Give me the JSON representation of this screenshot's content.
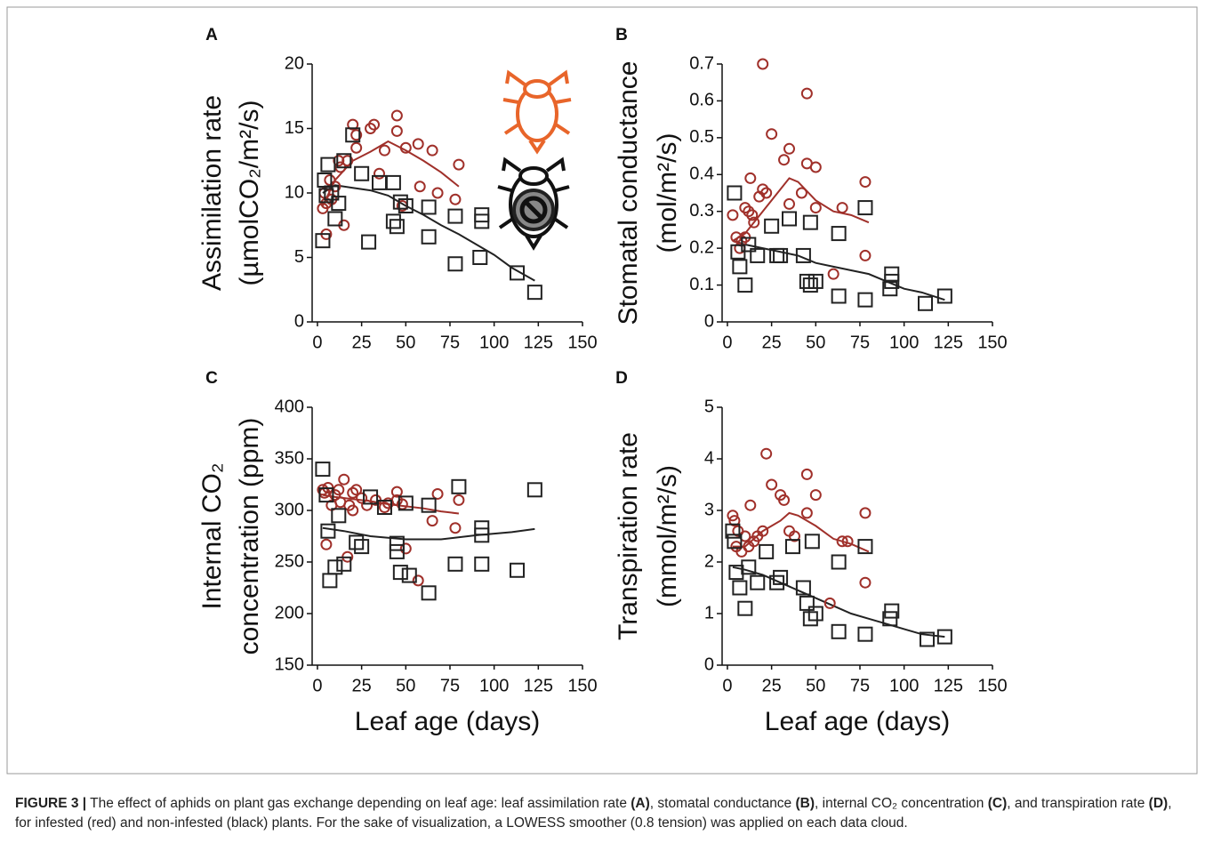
{
  "chart_data": [
    {
      "type": "scatter",
      "panel": "A",
      "ylabel": [
        "Assimilation rate",
        "(µmolCO₂/m²/s)"
      ],
      "xlim": [
        -3,
        150
      ],
      "xticks": [
        0,
        25,
        50,
        75,
        100,
        125,
        150
      ],
      "ylim": [
        0,
        20
      ],
      "yticks": [
        0,
        5,
        10,
        15,
        20
      ],
      "series": [
        {
          "color": "#a0302a",
          "marker": "circle",
          "x": [
            3,
            4,
            5,
            7,
            8,
            10,
            12,
            13,
            15,
            17,
            20,
            22,
            22,
            30,
            32,
            35,
            38,
            45,
            45,
            48,
            50,
            57,
            65,
            68,
            78,
            80,
            58,
            5
          ],
          "values": [
            8.8,
            10,
            9.2,
            11,
            9.5,
            10.5,
            12.5,
            12,
            7.5,
            12.5,
            15.3,
            13.5,
            14.5,
            15,
            15.3,
            11.5,
            13.3,
            16,
            14.8,
            9,
            13.5,
            13.8,
            13.3,
            10,
            9.5,
            12.2,
            10.5,
            6.8
          ]
        },
        {
          "color": "#222222",
          "marker": "square",
          "x": [
            3,
            4,
            6,
            8,
            10,
            12,
            15,
            20,
            25,
            29,
            35,
            43,
            43,
            45,
            47,
            50,
            63,
            63,
            78,
            78,
            92,
            93,
            93,
            113,
            123,
            5
          ],
          "values": [
            6.3,
            11,
            12.2,
            10,
            8,
            9.2,
            12.5,
            14.5,
            11.5,
            6.2,
            10.8,
            10.8,
            7.8,
            7.4,
            9.3,
            9,
            8.9,
            6.6,
            4.5,
            8.2,
            5,
            8.3,
            7.8,
            3.8,
            2.3,
            9.8
          ]
        }
      ],
      "smoothers": [
        {
          "color": "#a0302a",
          "x": [
            3,
            10,
            20,
            30,
            40,
            50,
            60,
            70,
            80
          ],
          "values": [
            9,
            11,
            12.5,
            13.2,
            14,
            13.3,
            12.5,
            11.6,
            10.5
          ]
        },
        {
          "color": "#222222",
          "x": [
            3,
            10,
            20,
            30,
            40,
            50,
            60,
            70,
            80,
            90,
            100,
            110,
            123
          ],
          "values": [
            10,
            10.6,
            10.4,
            10.2,
            9.8,
            9,
            8.3,
            7.5,
            6.8,
            6,
            5.2,
            4.2,
            3.2
          ]
        }
      ]
    },
    {
      "type": "scatter",
      "panel": "B",
      "ylabel": [
        "Stomatal conductance",
        "(mol/m²/s)"
      ],
      "xlim": [
        -3,
        150
      ],
      "xticks": [
        0,
        25,
        50,
        75,
        100,
        125,
        150
      ],
      "ylim": [
        0,
        0.7
      ],
      "yticks": [
        0,
        0.1,
        0.2,
        0.3,
        0.4,
        0.5,
        0.6,
        0.7
      ],
      "series": [
        {
          "color": "#a0302a",
          "marker": "circle",
          "x": [
            3,
            5,
            7,
            8,
            10,
            10,
            12,
            13,
            14,
            15,
            18,
            20,
            20,
            22,
            25,
            32,
            35,
            35,
            42,
            45,
            45,
            50,
            60,
            65,
            78,
            78,
            50
          ],
          "values": [
            0.29,
            0.23,
            0.2,
            0.22,
            0.31,
            0.23,
            0.3,
            0.39,
            0.29,
            0.27,
            0.34,
            0.36,
            0.7,
            0.35,
            0.51,
            0.44,
            0.47,
            0.32,
            0.35,
            0.62,
            0.43,
            0.42,
            0.13,
            0.31,
            0.38,
            0.18,
            0.31
          ]
        },
        {
          "color": "#222222",
          "marker": "square",
          "x": [
            4,
            6,
            7,
            10,
            12,
            17,
            25,
            28,
            35,
            43,
            45,
            47,
            47,
            50,
            63,
            63,
            78,
            78,
            92,
            93,
            93,
            112,
            123,
            30
          ],
          "values": [
            0.35,
            0.19,
            0.15,
            0.1,
            0.21,
            0.18,
            0.26,
            0.18,
            0.28,
            0.18,
            0.11,
            0.1,
            0.27,
            0.11,
            0.24,
            0.07,
            0.06,
            0.31,
            0.09,
            0.13,
            0.11,
            0.05,
            0.07,
            0.18
          ]
        }
      ],
      "smoothers": [
        {
          "color": "#a0302a",
          "x": [
            3,
            10,
            20,
            30,
            35,
            40,
            50,
            60,
            70,
            80
          ],
          "values": [
            0.22,
            0.24,
            0.3,
            0.36,
            0.39,
            0.38,
            0.33,
            0.3,
            0.29,
            0.27
          ]
        },
        {
          "color": "#222222",
          "x": [
            3,
            10,
            20,
            30,
            40,
            50,
            60,
            70,
            80,
            90,
            100,
            110,
            123
          ],
          "values": [
            0.22,
            0.21,
            0.2,
            0.19,
            0.18,
            0.16,
            0.15,
            0.14,
            0.13,
            0.11,
            0.09,
            0.08,
            0.06
          ]
        }
      ]
    },
    {
      "type": "scatter",
      "panel": "C",
      "ylabel": [
        "Internal CO₂",
        "concentration (ppm)"
      ],
      "xlabel": "Leaf age (days)",
      "xlim": [
        -3,
        150
      ],
      "xticks": [
        0,
        25,
        50,
        75,
        100,
        125,
        150
      ],
      "ylim": [
        150,
        400
      ],
      "yticks": [
        150,
        200,
        250,
        300,
        350,
        400
      ],
      "series": [
        {
          "color": "#a0302a",
          "marker": "circle",
          "x": [
            3,
            4,
            5,
            6,
            8,
            10,
            12,
            13,
            15,
            17,
            18,
            20,
            22,
            25,
            28,
            33,
            38,
            40,
            45,
            45,
            48,
            50,
            57,
            65,
            68,
            78,
            80,
            20
          ],
          "values": [
            320,
            317,
            267,
            322,
            305,
            315,
            320,
            308,
            330,
            255,
            305,
            317,
            320,
            312,
            305,
            310,
            303,
            307,
            318,
            310,
            306,
            263,
            232,
            290,
            316,
            283,
            310,
            300
          ]
        },
        {
          "color": "#222222",
          "marker": "square",
          "x": [
            3,
            5,
            6,
            7,
            10,
            12,
            15,
            22,
            25,
            30,
            38,
            45,
            45,
            47,
            50,
            52,
            63,
            63,
            78,
            80,
            93,
            93,
            93,
            113,
            123
          ],
          "values": [
            340,
            315,
            280,
            232,
            245,
            295,
            248,
            269,
            265,
            313,
            303,
            268,
            260,
            240,
            307,
            237,
            220,
            305,
            248,
            323,
            283,
            276,
            248,
            242,
            320
          ]
        }
      ],
      "smoothers": [
        {
          "color": "#a0302a",
          "x": [
            3,
            10,
            20,
            30,
            40,
            50,
            60,
            70,
            80
          ],
          "values": [
            315,
            313,
            311,
            309,
            306,
            304,
            302,
            299,
            297
          ]
        },
        {
          "color": "#222222",
          "x": [
            3,
            15,
            30,
            50,
            70,
            90,
            110,
            123
          ],
          "values": [
            283,
            280,
            275,
            272,
            272,
            276,
            279,
            282
          ]
        }
      ]
    },
    {
      "type": "scatter",
      "panel": "D",
      "ylabel": [
        "Transpiration rate",
        "(mmol/m²/s)"
      ],
      "xlabel": "Leaf age (days)",
      "xlim": [
        -3,
        150
      ],
      "xticks": [
        0,
        25,
        50,
        75,
        100,
        125,
        150
      ],
      "ylim": [
        0,
        5
      ],
      "yticks": [
        0,
        1,
        2,
        3,
        4,
        5
      ],
      "series": [
        {
          "color": "#a0302a",
          "marker": "circle",
          "x": [
            3,
            4,
            5,
            6,
            8,
            10,
            12,
            13,
            15,
            17,
            20,
            22,
            25,
            30,
            32,
            35,
            38,
            45,
            45,
            50,
            58,
            65,
            68,
            78,
            78
          ],
          "values": [
            2.9,
            2.8,
            2.3,
            2.6,
            2.2,
            2.5,
            2.3,
            3.1,
            2.4,
            2.5,
            2.6,
            4.1,
            3.5,
            3.3,
            3.2,
            2.6,
            2.5,
            3.7,
            2.95,
            3.3,
            1.2,
            2.4,
            2.4,
            2.95,
            1.6
          ]
        },
        {
          "color": "#222222",
          "marker": "square",
          "x": [
            3,
            4,
            5,
            7,
            10,
            12,
            17,
            22,
            28,
            30,
            37,
            43,
            45,
            47,
            48,
            50,
            63,
            63,
            78,
            78,
            92,
            93,
            113,
            123
          ],
          "values": [
            2.6,
            2.4,
            1.8,
            1.5,
            1.1,
            1.9,
            1.6,
            2.2,
            1.6,
            1.7,
            2.3,
            1.5,
            1.2,
            0.9,
            2.4,
            1,
            2,
            0.65,
            0.6,
            2.3,
            0.9,
            1.05,
            0.5,
            0.55
          ]
        }
      ],
      "smoothers": [
        {
          "color": "#a0302a",
          "x": [
            3,
            10,
            20,
            30,
            35,
            40,
            50,
            60,
            70,
            80
          ],
          "values": [
            2.3,
            2.3,
            2.6,
            2.8,
            2.95,
            2.9,
            2.7,
            2.45,
            2.35,
            2.2
          ]
        },
        {
          "color": "#222222",
          "x": [
            3,
            10,
            20,
            30,
            40,
            50,
            60,
            70,
            80,
            90,
            100,
            110,
            123
          ],
          "values": [
            1.9,
            1.85,
            1.75,
            1.6,
            1.45,
            1.3,
            1.15,
            1,
            0.9,
            0.8,
            0.7,
            0.6,
            0.55
          ]
        }
      ]
    }
  ],
  "caption": [
    "FIGURE 3 |",
    " The effect of aphids on plant gas exchange depending on leaf age: leaf assimilation rate ",
    "(A)",
    ", stomatal conductance ",
    "(B)",
    ", internal CO₂ concentration ",
    "(C)",
    ", and transpiration rate ",
    "(D)",
    ", for infested (red) and non-infested (black) plants. For the sake of visualization, a LOWESS smoother (0.8 tension) was applied on each data cloud."
  ]
}
